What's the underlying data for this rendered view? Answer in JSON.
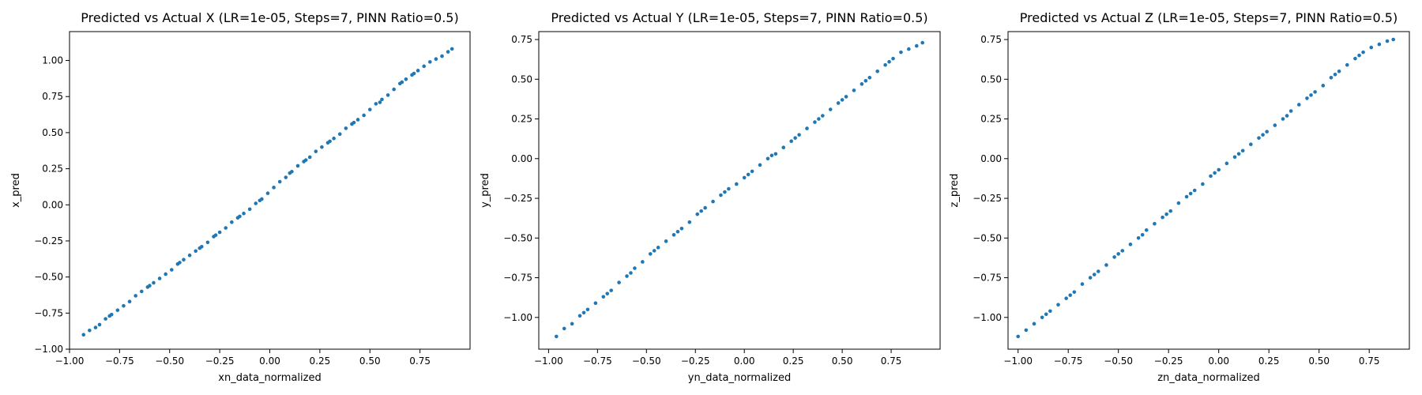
{
  "chart_data": [
    {
      "type": "scatter",
      "title": "Predicted vs Actual X (LR=1e-05, Steps=7, PINN Ratio=0.5)",
      "xlabel": "xn_data_normalized",
      "ylabel": "x_pred",
      "xlim": [
        -1.0,
        1.0
      ],
      "ylim": [
        -1.0,
        1.2
      ],
      "xticks": [
        "−1.00",
        "−0.75",
        "−0.50",
        "−0.25",
        "0.00",
        "0.25",
        "0.50",
        "0.75"
      ],
      "xtick_values": [
        -1.0,
        -0.75,
        -0.5,
        -0.25,
        0.0,
        0.25,
        0.5,
        0.75
      ],
      "yticks": [
        "−1.00",
        "−0.75",
        "−0.50",
        "−0.25",
        "0.00",
        "0.25",
        "0.50",
        "0.75",
        "1.00"
      ],
      "ytick_values": [
        -1.0,
        -0.75,
        -0.5,
        -0.25,
        0.0,
        0.25,
        0.5,
        0.75,
        1.0
      ],
      "color": "#1f77b4",
      "points": [
        [
          -0.93,
          -0.9
        ],
        [
          -0.9,
          -0.87
        ],
        [
          -0.87,
          -0.85
        ],
        [
          -0.85,
          -0.83
        ],
        [
          -0.82,
          -0.79
        ],
        [
          -0.79,
          -0.76
        ],
        [
          -0.76,
          -0.73
        ],
        [
          -0.73,
          -0.7
        ],
        [
          -0.7,
          -0.67
        ],
        [
          -0.67,
          -0.63
        ],
        [
          -0.64,
          -0.6
        ],
        [
          -0.61,
          -0.57
        ],
        [
          -0.58,
          -0.54
        ],
        [
          -0.55,
          -0.51
        ],
        [
          -0.52,
          -0.48
        ],
        [
          -0.49,
          -0.45
        ],
        [
          -0.46,
          -0.41
        ],
        [
          -0.43,
          -0.38
        ],
        [
          -0.4,
          -0.35
        ],
        [
          -0.37,
          -0.32
        ],
        [
          -0.34,
          -0.29
        ],
        [
          -0.31,
          -0.26
        ],
        [
          -0.28,
          -0.22
        ],
        [
          -0.25,
          -0.19
        ],
        [
          -0.22,
          -0.16
        ],
        [
          -0.19,
          -0.12
        ],
        [
          -0.16,
          -0.09
        ],
        [
          -0.13,
          -0.06
        ],
        [
          -0.1,
          -0.03
        ],
        [
          -0.07,
          0.01
        ],
        [
          -0.04,
          0.04
        ],
        [
          -0.01,
          0.08
        ],
        [
          0.02,
          0.12
        ],
        [
          0.05,
          0.16
        ],
        [
          0.08,
          0.19
        ],
        [
          0.11,
          0.23
        ],
        [
          0.14,
          0.27
        ],
        [
          0.17,
          0.3
        ],
        [
          0.2,
          0.33
        ],
        [
          0.23,
          0.37
        ],
        [
          0.26,
          0.4
        ],
        [
          0.29,
          0.43
        ],
        [
          0.32,
          0.46
        ],
        [
          0.35,
          0.49
        ],
        [
          0.38,
          0.53
        ],
        [
          0.41,
          0.56
        ],
        [
          0.44,
          0.59
        ],
        [
          0.47,
          0.62
        ],
        [
          0.5,
          0.66
        ],
        [
          0.53,
          0.7
        ],
        [
          0.56,
          0.73
        ],
        [
          0.59,
          0.76
        ],
        [
          0.62,
          0.8
        ],
        [
          0.65,
          0.84
        ],
        [
          0.68,
          0.87
        ],
        [
          0.71,
          0.9
        ],
        [
          0.74,
          0.93
        ],
        [
          0.77,
          0.96
        ],
        [
          0.8,
          0.99
        ],
        [
          0.83,
          1.01
        ],
        [
          0.86,
          1.03
        ],
        [
          0.89,
          1.06
        ],
        [
          0.91,
          1.08
        ],
        [
          -0.6,
          -0.56
        ],
        [
          -0.35,
          -0.3
        ],
        [
          -0.15,
          -0.08
        ],
        [
          0.1,
          0.22
        ],
        [
          0.3,
          0.44
        ],
        [
          0.55,
          0.71
        ],
        [
          0.72,
          0.91
        ],
        [
          -0.8,
          -0.77
        ],
        [
          -0.05,
          0.03
        ],
        [
          0.18,
          0.31
        ],
        [
          0.42,
          0.57
        ],
        [
          0.66,
          0.85
        ],
        [
          -0.45,
          -0.4
        ],
        [
          -0.27,
          -0.21
        ]
      ]
    },
    {
      "type": "scatter",
      "title": "Predicted vs Actual Y (LR=1e-05, Steps=7, PINN Ratio=0.5)",
      "xlabel": "yn_data_normalized",
      "ylabel": "y_pred",
      "xlim": [
        -1.05,
        1.0
      ],
      "ylim": [
        -1.2,
        0.8
      ],
      "xticks": [
        "−1.00",
        "−0.75",
        "−0.50",
        "−0.25",
        "0.00",
        "0.25",
        "0.50",
        "0.75"
      ],
      "xtick_values": [
        -1.0,
        -0.75,
        -0.5,
        -0.25,
        0.0,
        0.25,
        0.5,
        0.75
      ],
      "yticks": [
        "−1.00",
        "−0.75",
        "−0.50",
        "−0.25",
        "0.00",
        "0.25",
        "0.50",
        "0.75"
      ],
      "ytick_values": [
        -1.0,
        -0.75,
        -0.5,
        -0.25,
        0.0,
        0.25,
        0.5,
        0.75
      ],
      "color": "#1f77b4",
      "points": [
        [
          -0.96,
          -1.12
        ],
        [
          -0.92,
          -1.07
        ],
        [
          -0.88,
          -1.04
        ],
        [
          -0.84,
          -0.99
        ],
        [
          -0.8,
          -0.95
        ],
        [
          -0.76,
          -0.91
        ],
        [
          -0.72,
          -0.87
        ],
        [
          -0.68,
          -0.83
        ],
        [
          -0.64,
          -0.78
        ],
        [
          -0.6,
          -0.74
        ],
        [
          -0.56,
          -0.69
        ],
        [
          -0.52,
          -0.65
        ],
        [
          -0.48,
          -0.6
        ],
        [
          -0.44,
          -0.56
        ],
        [
          -0.4,
          -0.52
        ],
        [
          -0.36,
          -0.48
        ],
        [
          -0.32,
          -0.44
        ],
        [
          -0.28,
          -0.4
        ],
        [
          -0.24,
          -0.35
        ],
        [
          -0.2,
          -0.31
        ],
        [
          -0.16,
          -0.27
        ],
        [
          -0.12,
          -0.23
        ],
        [
          -0.08,
          -0.19
        ],
        [
          -0.04,
          -0.16
        ],
        [
          0.0,
          -0.12
        ],
        [
          0.04,
          -0.08
        ],
        [
          0.08,
          -0.04
        ],
        [
          0.12,
          0.0
        ],
        [
          0.16,
          0.03
        ],
        [
          0.2,
          0.07
        ],
        [
          0.24,
          0.11
        ],
        [
          0.28,
          0.15
        ],
        [
          0.32,
          0.19
        ],
        [
          0.36,
          0.23
        ],
        [
          0.4,
          0.27
        ],
        [
          0.44,
          0.31
        ],
        [
          0.48,
          0.35
        ],
        [
          0.52,
          0.39
        ],
        [
          0.56,
          0.43
        ],
        [
          0.6,
          0.47
        ],
        [
          0.64,
          0.51
        ],
        [
          0.68,
          0.55
        ],
        [
          0.72,
          0.59
        ],
        [
          0.76,
          0.63
        ],
        [
          0.8,
          0.67
        ],
        [
          0.84,
          0.69
        ],
        [
          0.88,
          0.71
        ],
        [
          0.91,
          0.73
        ],
        [
          -0.7,
          -0.85
        ],
        [
          -0.46,
          -0.58
        ],
        [
          -0.22,
          -0.33
        ],
        [
          0.02,
          -0.1
        ],
        [
          0.26,
          0.13
        ],
        [
          0.5,
          0.37
        ],
        [
          0.74,
          0.61
        ],
        [
          -0.58,
          -0.72
        ],
        [
          -0.1,
          -0.21
        ],
        [
          0.14,
          0.02
        ],
        [
          0.38,
          0.25
        ],
        [
          0.62,
          0.49
        ],
        [
          -0.34,
          -0.46
        ],
        [
          -0.82,
          -0.97
        ]
      ]
    },
    {
      "type": "scatter",
      "title": "Predicted vs Actual Z (LR=1e-05, Steps=7, PINN Ratio=0.5)",
      "xlabel": "zn_data_normalized",
      "ylabel": "z_pred",
      "xlim": [
        -1.05,
        0.95
      ],
      "ylim": [
        -1.2,
        0.8
      ],
      "xticks": [
        "−1.00",
        "−0.75",
        "−0.50",
        "−0.25",
        "0.00",
        "0.25",
        "0.50",
        "0.75"
      ],
      "xtick_values": [
        -1.0,
        -0.75,
        -0.5,
        -0.25,
        0.0,
        0.25,
        0.5,
        0.75
      ],
      "yticks": [
        "−1.00",
        "−0.75",
        "−0.50",
        "−0.25",
        "0.00",
        "0.25",
        "0.50",
        "0.75"
      ],
      "ytick_values": [
        -1.0,
        -0.75,
        -0.5,
        -0.25,
        0.0,
        0.25,
        0.5,
        0.75
      ],
      "color": "#1f77b4",
      "points": [
        [
          -1.0,
          -1.12
        ],
        [
          -0.96,
          -1.08
        ],
        [
          -0.92,
          -1.04
        ],
        [
          -0.88,
          -1.0
        ],
        [
          -0.84,
          -0.96
        ],
        [
          -0.8,
          -0.92
        ],
        [
          -0.76,
          -0.88
        ],
        [
          -0.72,
          -0.84
        ],
        [
          -0.68,
          -0.79
        ],
        [
          -0.64,
          -0.75
        ],
        [
          -0.6,
          -0.71
        ],
        [
          -0.56,
          -0.67
        ],
        [
          -0.52,
          -0.62
        ],
        [
          -0.48,
          -0.58
        ],
        [
          -0.44,
          -0.54
        ],
        [
          -0.4,
          -0.5
        ],
        [
          -0.36,
          -0.45
        ],
        [
          -0.32,
          -0.41
        ],
        [
          -0.28,
          -0.37
        ],
        [
          -0.24,
          -0.33
        ],
        [
          -0.2,
          -0.28
        ],
        [
          -0.16,
          -0.24
        ],
        [
          -0.12,
          -0.2
        ],
        [
          -0.08,
          -0.16
        ],
        [
          -0.04,
          -0.11
        ],
        [
          0.0,
          -0.07
        ],
        [
          0.04,
          -0.03
        ],
        [
          0.08,
          0.01
        ],
        [
          0.12,
          0.05
        ],
        [
          0.16,
          0.09
        ],
        [
          0.2,
          0.13
        ],
        [
          0.24,
          0.17
        ],
        [
          0.28,
          0.21
        ],
        [
          0.32,
          0.25
        ],
        [
          0.36,
          0.3
        ],
        [
          0.4,
          0.34
        ],
        [
          0.44,
          0.38
        ],
        [
          0.48,
          0.42
        ],
        [
          0.52,
          0.46
        ],
        [
          0.56,
          0.51
        ],
        [
          0.6,
          0.55
        ],
        [
          0.64,
          0.59
        ],
        [
          0.68,
          0.63
        ],
        [
          0.72,
          0.67
        ],
        [
          0.76,
          0.7
        ],
        [
          0.8,
          0.72
        ],
        [
          0.84,
          0.74
        ],
        [
          0.87,
          0.75
        ],
        [
          -0.74,
          -0.86
        ],
        [
          -0.5,
          -0.6
        ],
        [
          -0.26,
          -0.35
        ],
        [
          -0.02,
          -0.09
        ],
        [
          0.22,
          0.15
        ],
        [
          0.46,
          0.4
        ],
        [
          0.7,
          0.65
        ],
        [
          -0.62,
          -0.73
        ],
        [
          -0.14,
          -0.22
        ],
        [
          0.1,
          0.03
        ],
        [
          0.34,
          0.27
        ],
        [
          0.58,
          0.53
        ],
        [
          -0.38,
          -0.48
        ],
        [
          -0.86,
          -0.98
        ]
      ]
    }
  ]
}
